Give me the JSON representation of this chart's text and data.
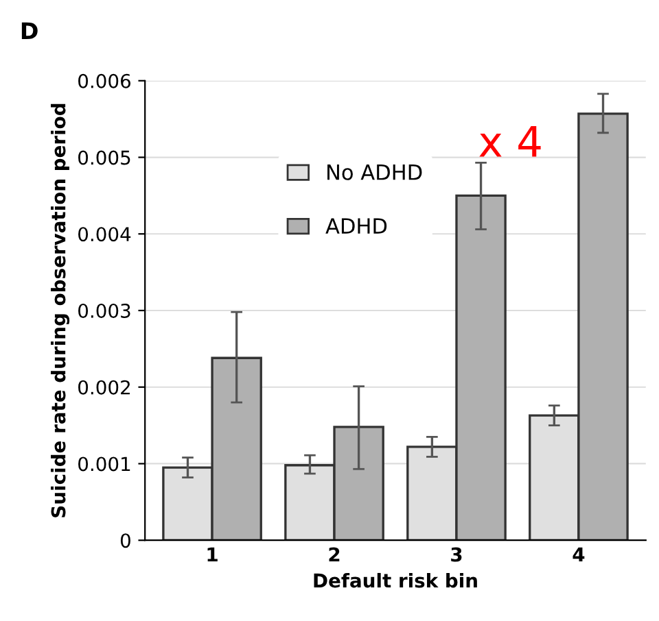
{
  "chart_data": {
    "type": "bar",
    "xlabel": "Default risk bin",
    "ylabel": "Suicide rate during observation period",
    "categories": [
      "1",
      "2",
      "3",
      "4"
    ],
    "series": [
      {
        "name": "No ADHD",
        "color": "#e0e0e0",
        "values": [
          0.00095,
          0.00098,
          0.00122,
          0.00163
        ],
        "errors": [
          [
            0.00082,
            0.00108
          ],
          [
            0.00087,
            0.00111
          ],
          [
            0.00109,
            0.00135
          ],
          [
            0.0015,
            0.00176
          ]
        ]
      },
      {
        "name": "ADHD",
        "color": "#b0b0b0",
        "values": [
          0.00238,
          0.00148,
          0.0045,
          0.00557
        ],
        "errors": [
          [
            0.0018,
            0.00298
          ],
          [
            0.00093,
            0.00201
          ],
          [
            0.00406,
            0.00493
          ],
          [
            0.00532,
            0.00583
          ]
        ]
      }
    ],
    "ylim": [
      0,
      0.006
    ],
    "yticks": [
      0,
      0.001,
      0.002,
      0.003,
      0.004,
      0.005,
      0.006
    ],
    "grid": "y",
    "legend": "top",
    "annotations": [
      "D",
      "x 4"
    ]
  }
}
